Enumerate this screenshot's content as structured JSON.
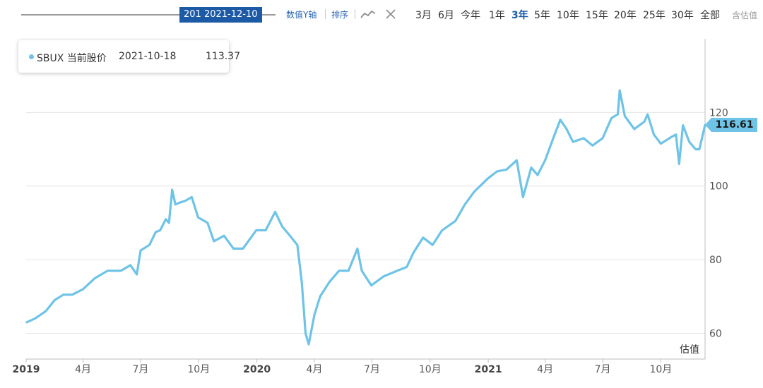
{
  "toolbar": {
    "slider_label": "201 2021-12-10",
    "y_axis_link": "数值Y轴",
    "sort_link": "排序",
    "periods": [
      "3月",
      "6月",
      "今年",
      "1年",
      "3年",
      "5年",
      "10年",
      "15年",
      "20年",
      "25年",
      "30年",
      "全部"
    ],
    "active_period": "3年",
    "estimate_toggle": "含估值",
    "icons": {
      "trend": "line-trend-icon",
      "close": "close-icon"
    }
  },
  "tooltip": {
    "series": "SBUX 当前股价",
    "date": "2021-10-18",
    "value": "113.37"
  },
  "last_value_badge": "116.61",
  "colors": {
    "series": "#6ec3e6",
    "accent": "#1d5aa6",
    "grid": "#e6e6e6"
  },
  "chart_data": {
    "type": "line",
    "x_tick_labels": [
      "2019",
      "4月",
      "7月",
      "10月",
      "2020",
      "4月",
      "7月",
      "10月",
      "2021",
      "4月",
      "7月",
      "10月"
    ],
    "y_tick_labels": [
      "60",
      "80",
      "100",
      "120"
    ],
    "ylim": [
      53,
      140
    ],
    "y_axis_label": "估值",
    "series": [
      {
        "name": "SBUX",
        "points": [
          [
            "2019-01-02",
            63.0
          ],
          [
            "2019-01-15",
            64.0
          ],
          [
            "2019-02-01",
            66.0
          ],
          [
            "2019-02-15",
            69.0
          ],
          [
            "2019-03-01",
            70.5
          ],
          [
            "2019-03-15",
            70.5
          ],
          [
            "2019-04-01",
            72.0
          ],
          [
            "2019-04-20",
            75.0
          ],
          [
            "2019-05-10",
            77.0
          ],
          [
            "2019-05-31",
            77.0
          ],
          [
            "2019-06-15",
            78.5
          ],
          [
            "2019-06-25",
            76.0
          ],
          [
            "2019-07-01",
            82.5
          ],
          [
            "2019-07-15",
            84.0
          ],
          [
            "2019-07-25",
            87.5
          ],
          [
            "2019-08-01",
            88.0
          ],
          [
            "2019-08-10",
            91.0
          ],
          [
            "2019-08-15",
            90.0
          ],
          [
            "2019-08-20",
            99.0
          ],
          [
            "2019-08-25",
            95.0
          ],
          [
            "2019-09-01",
            95.5
          ],
          [
            "2019-09-10",
            96.0
          ],
          [
            "2019-09-20",
            97.0
          ],
          [
            "2019-09-30",
            91.5
          ],
          [
            "2019-10-15",
            90.0
          ],
          [
            "2019-10-25",
            85.0
          ],
          [
            "2019-11-10",
            86.5
          ],
          [
            "2019-11-25",
            83.0
          ],
          [
            "2019-12-10",
            83.0
          ],
          [
            "2019-12-31",
            88.0
          ],
          [
            "2020-01-15",
            88.0
          ],
          [
            "2020-01-30",
            93.0
          ],
          [
            "2020-02-10",
            89.0
          ],
          [
            "2020-02-20",
            87.0
          ],
          [
            "2020-03-05",
            84.0
          ],
          [
            "2020-03-12",
            74.0
          ],
          [
            "2020-03-18",
            60.0
          ],
          [
            "2020-03-23",
            57.0
          ],
          [
            "2020-04-01",
            65.0
          ],
          [
            "2020-04-10",
            70.0
          ],
          [
            "2020-04-25",
            74.0
          ],
          [
            "2020-05-10",
            77.0
          ],
          [
            "2020-05-25",
            77.0
          ],
          [
            "2020-06-08",
            83.0
          ],
          [
            "2020-06-15",
            77.0
          ],
          [
            "2020-06-30",
            73.0
          ],
          [
            "2020-07-20",
            75.5
          ],
          [
            "2020-08-10",
            77.0
          ],
          [
            "2020-08-25",
            78.0
          ],
          [
            "2020-09-05",
            82.0
          ],
          [
            "2020-09-20",
            86.0
          ],
          [
            "2020-10-05",
            84.0
          ],
          [
            "2020-10-20",
            88.0
          ],
          [
            "2020-11-10",
            90.5
          ],
          [
            "2020-11-25",
            95.0
          ],
          [
            "2020-12-10",
            98.5
          ],
          [
            "2020-12-31",
            102.0
          ],
          [
            "2021-01-15",
            104.0
          ],
          [
            "2021-01-30",
            104.5
          ],
          [
            "2021-02-15",
            107.0
          ],
          [
            "2021-02-25",
            97.0
          ],
          [
            "2021-03-10",
            105.0
          ],
          [
            "2021-03-20",
            103.0
          ],
          [
            "2021-04-01",
            107.0
          ],
          [
            "2021-04-15",
            113.5
          ],
          [
            "2021-04-25",
            118.0
          ],
          [
            "2021-05-05",
            115.5
          ],
          [
            "2021-05-15",
            112.0
          ],
          [
            "2021-06-01",
            113.0
          ],
          [
            "2021-06-15",
            111.0
          ],
          [
            "2021-07-01",
            113.0
          ],
          [
            "2021-07-15",
            118.5
          ],
          [
            "2021-07-25",
            119.5
          ],
          [
            "2021-07-28",
            126.0
          ],
          [
            "2021-08-05",
            119.0
          ],
          [
            "2021-08-20",
            115.5
          ],
          [
            "2021-09-05",
            117.5
          ],
          [
            "2021-09-10",
            119.5
          ],
          [
            "2021-09-20",
            114.0
          ],
          [
            "2021-10-01",
            111.5
          ],
          [
            "2021-10-18",
            113.37
          ],
          [
            "2021-10-25",
            114.0
          ],
          [
            "2021-10-30",
            106.0
          ],
          [
            "2021-11-05",
            116.5
          ],
          [
            "2021-11-15",
            112.0
          ],
          [
            "2021-11-25",
            110.0
          ],
          [
            "2021-12-01",
            110.0
          ],
          [
            "2021-12-10",
            116.61
          ]
        ]
      }
    ]
  }
}
